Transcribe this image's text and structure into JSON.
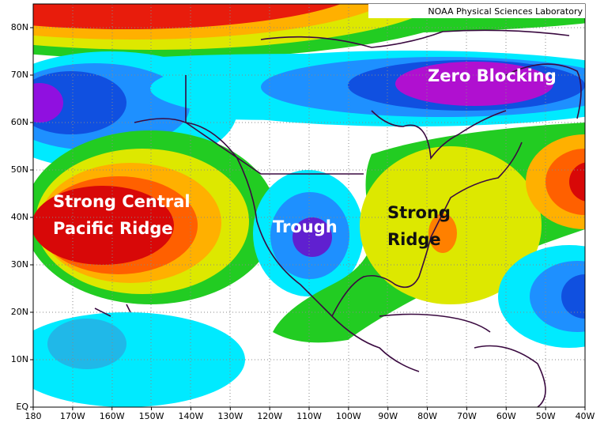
{
  "header": {
    "credit": "NOAA Physical Sciences Laboratory"
  },
  "map": {
    "lat_labels": [
      "80N",
      "70N",
      "60N",
      "50N",
      "40N",
      "30N",
      "20N",
      "10N",
      "EQ"
    ],
    "lon_labels": [
      "180",
      "170W",
      "160W",
      "150W",
      "140W",
      "130W",
      "120W",
      "110W",
      "100W",
      "90W",
      "80W",
      "70W",
      "60W",
      "50W",
      "40W"
    ],
    "annotations": [
      {
        "lines": [
          "Zero Blocking"
        ]
      },
      {
        "lines": [
          "Strong Central",
          "Pacific Ridge"
        ]
      },
      {
        "lines": [
          "Trough"
        ]
      },
      {
        "lines": [
          "Strong",
          "Ridge"
        ]
      }
    ]
  }
}
